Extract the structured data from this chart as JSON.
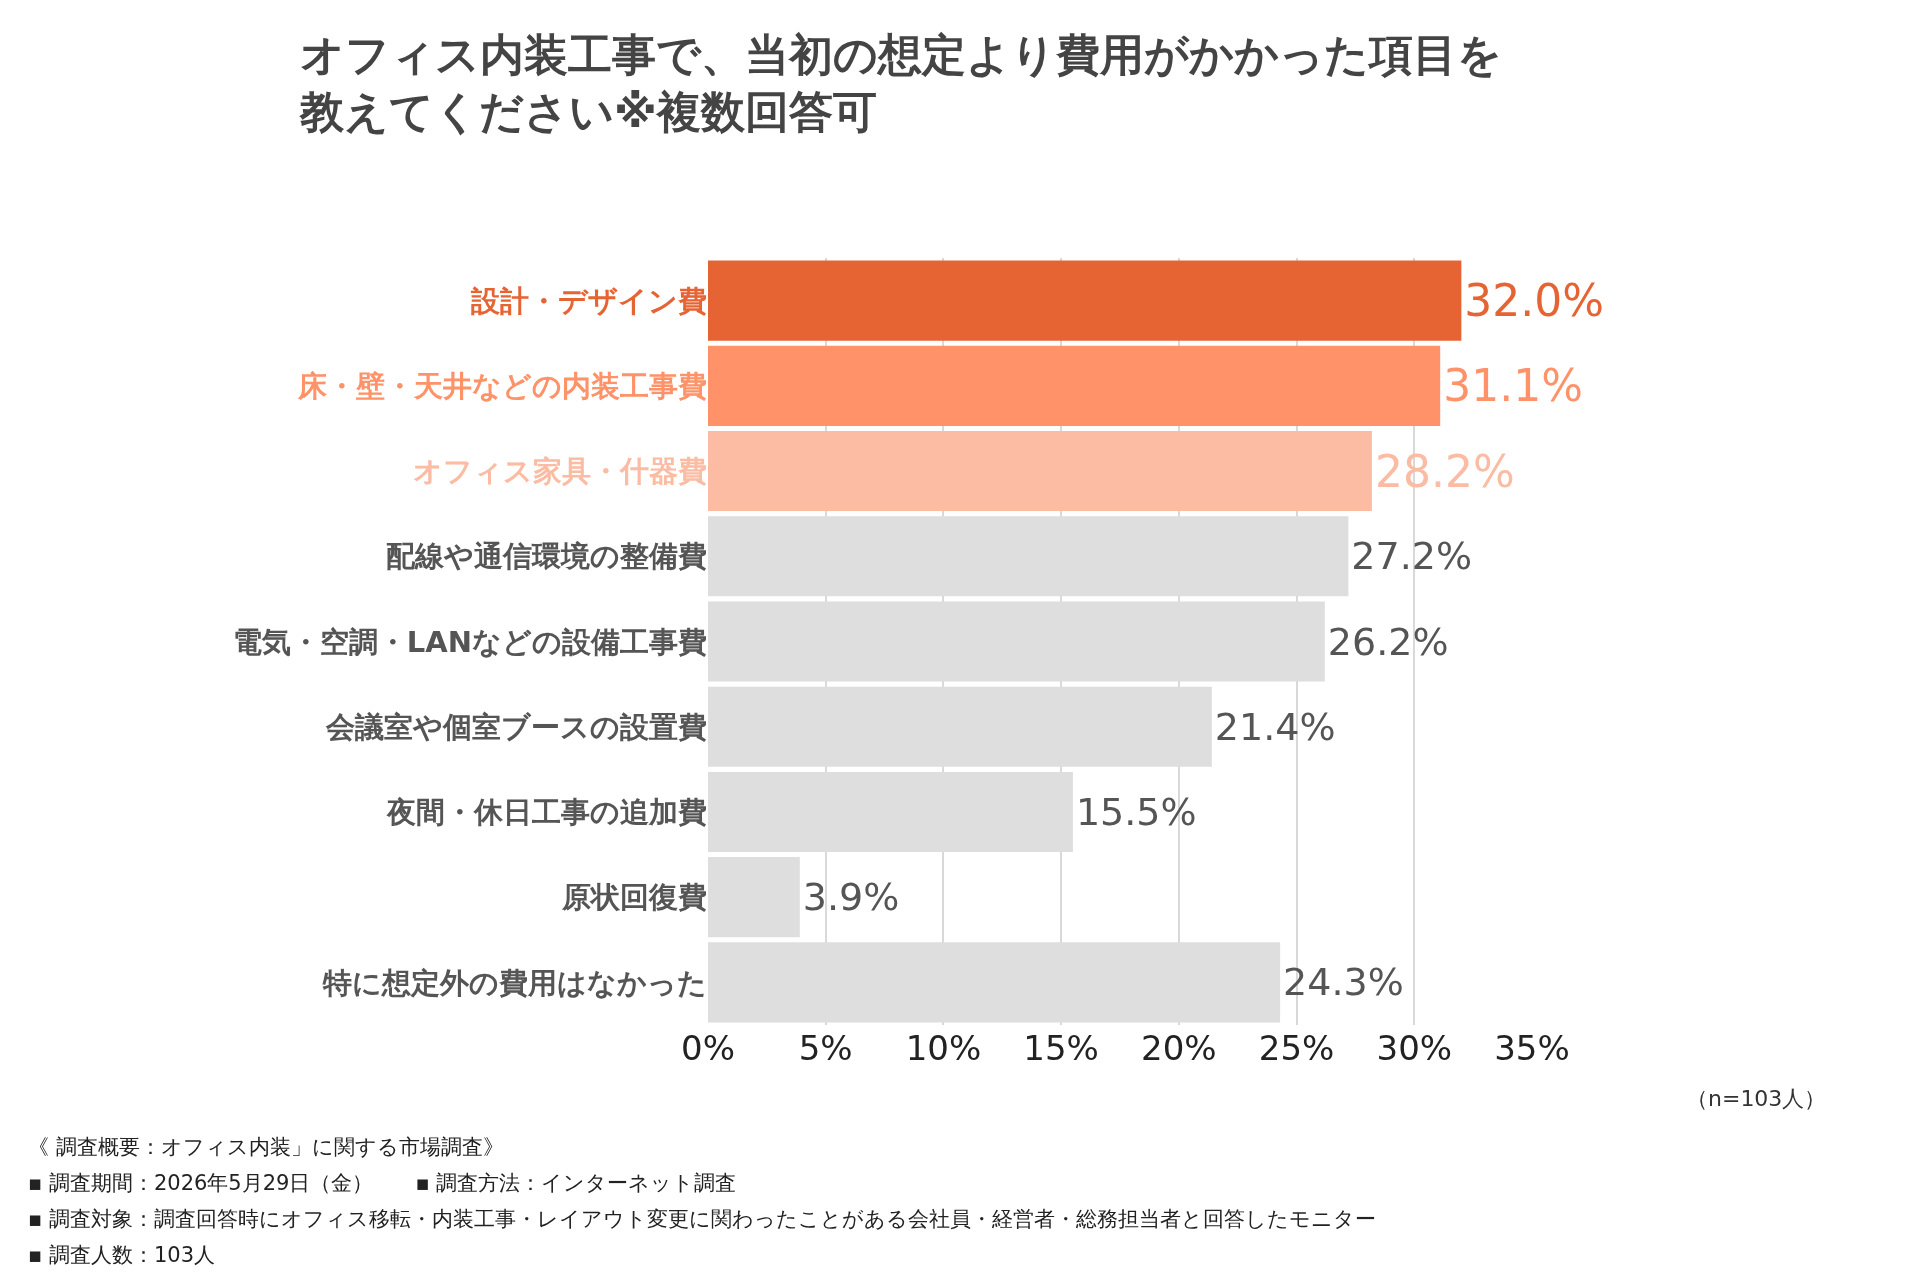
{
  "chart_data": {
    "type": "bar",
    "orientation": "horizontal",
    "title": "オフィス内装工事で、当初の想定より費用がかかった項目を教えてください※複数回答可",
    "categories": [
      "設計・デザイン費",
      "床・壁・天井などの内装工事費",
      "オフィス家具・什器費",
      "配線や通信環境の整備費",
      "電気・空調・LANなどの設備工事費",
      "会議室や個室ブースの設置費",
      "夜間・休日工事の追加費",
      "原状回復費",
      "特に想定外の費用はなかった"
    ],
    "values": [
      32.0,
      31.1,
      28.2,
      27.2,
      26.2,
      21.4,
      15.5,
      3.9,
      24.3
    ],
    "value_labels": [
      "32.0%",
      "31.1%",
      "28.2%",
      "27.2%",
      "26.2%",
      "21.4%",
      "15.5%",
      "3.9%",
      "24.3%"
    ],
    "colors": [
      "#e66433",
      "#ff9268",
      "#fcbba3",
      "#dedede",
      "#dedede",
      "#dedede",
      "#dedede",
      "#dedede",
      "#dedede"
    ],
    "xlim": [
      0,
      35
    ],
    "xticks": [
      {
        "value": 0,
        "label": "0%"
      },
      {
        "value": 5,
        "label": "5%"
      },
      {
        "value": 10,
        "label": "10%"
      },
      {
        "value": 15,
        "label": "15%"
      },
      {
        "value": 20,
        "label": "20%"
      },
      {
        "value": 25,
        "label": "25%"
      },
      {
        "value": 30,
        "label": "30%"
      },
      {
        "value": 35,
        "label": "35%"
      }
    ],
    "grid": "x",
    "annotations": [
      "（n=103人）",
      "《 調査概要：オフィス内装」に関する市場調査》",
      "▪ 調査期間：2026年5月29日（金）　　▪ 調査方法：インターネット調査",
      "▪ 調査対象：調査回答時にオフィス移転・内装工事・レイアウト変更に関わったことがある会社員・経営者・総務担当者と回答したモニター",
      "▪ 調査人数：103人"
    ]
  }
}
